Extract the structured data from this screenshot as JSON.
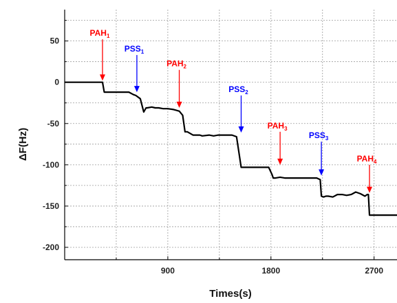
{
  "chart_data": {
    "type": "line",
    "xlabel": "Times(s)",
    "ylabel": "ΔF(Hz)",
    "xlim": [
      0,
      2900
    ],
    "ylim": [
      -215,
      88
    ],
    "x_ticks": [
      900,
      1800,
      2700
    ],
    "y_ticks": [
      50,
      0,
      -50,
      -100,
      -150,
      -200
    ],
    "grid": true,
    "series": [
      {
        "color": "#000000",
        "x": [
          0,
          60,
          100,
          140,
          180,
          220,
          260,
          300,
          330,
          345,
          360,
          420,
          500,
          560,
          600,
          620,
          660,
          690,
          710,
          720,
          760,
          790,
          820,
          860,
          900,
          950,
          1000,
          1030,
          1050,
          1060,
          1070,
          1120,
          1180,
          1200,
          1260,
          1300,
          1340,
          1400,
          1460,
          1500,
          1540,
          1560,
          1580,
          1640,
          1700,
          1780,
          1810,
          1820,
          1840,
          1880,
          1920,
          1980,
          2040,
          2100,
          2160,
          2200,
          2230,
          2240,
          2260,
          2280,
          2300,
          2340,
          2380,
          2420,
          2460,
          2500,
          2540,
          2580,
          2620,
          2640,
          2650,
          2660,
          2720,
          2780,
          2800,
          2900
        ],
        "y": [
          0,
          0,
          0,
          0,
          0,
          0,
          0,
          0,
          0,
          -12,
          -12,
          -12,
          -12,
          -12,
          -15,
          -16,
          -20,
          -36,
          -31,
          -31,
          -30,
          -31,
          -31,
          -32,
          -32,
          -33,
          -35,
          -40,
          -60,
          -60,
          -60,
          -64,
          -64,
          -65,
          -64,
          -65,
          -64,
          -64,
          -64,
          -66,
          -103,
          -103,
          -103,
          -103,
          -103,
          -103,
          -112,
          -116,
          -116,
          -115,
          -116,
          -116,
          -116,
          -116,
          -116,
          -116,
          -118,
          -138,
          -139,
          -138,
          -138,
          -139,
          -136,
          -136,
          -137,
          -136,
          -133,
          -135,
          -138,
          -136,
          -136,
          -161,
          -161,
          -161,
          -161,
          -161
        ]
      }
    ],
    "annotations": [
      {
        "label": "PAH",
        "sub": "1",
        "color": "#ff0000",
        "x": 330,
        "y_start": 52,
        "y_end": 2
      },
      {
        "label": "PSS",
        "sub": "1",
        "color": "#0000ff",
        "x": 630,
        "y_start": 33,
        "y_end": -12
      },
      {
        "label": "PAH",
        "sub": "2",
        "color": "#ff0000",
        "x": 1000,
        "y_start": 15,
        "y_end": -31
      },
      {
        "label": "PSS",
        "sub": "2",
        "color": "#0000ff",
        "x": 1540,
        "y_start": -16,
        "y_end": -61
      },
      {
        "label": "PAH",
        "sub": "3",
        "color": "#ff0000",
        "x": 1880,
        "y_start": -60,
        "y_end": -100
      },
      {
        "label": "PSS",
        "sub": "3",
        "color": "#0000ff",
        "x": 2240,
        "y_start": -72,
        "y_end": -113
      },
      {
        "label": "PAH",
        "sub": "4",
        "color": "#ff0000",
        "x": 2660,
        "y_start": -100,
        "y_end": -134
      }
    ]
  }
}
